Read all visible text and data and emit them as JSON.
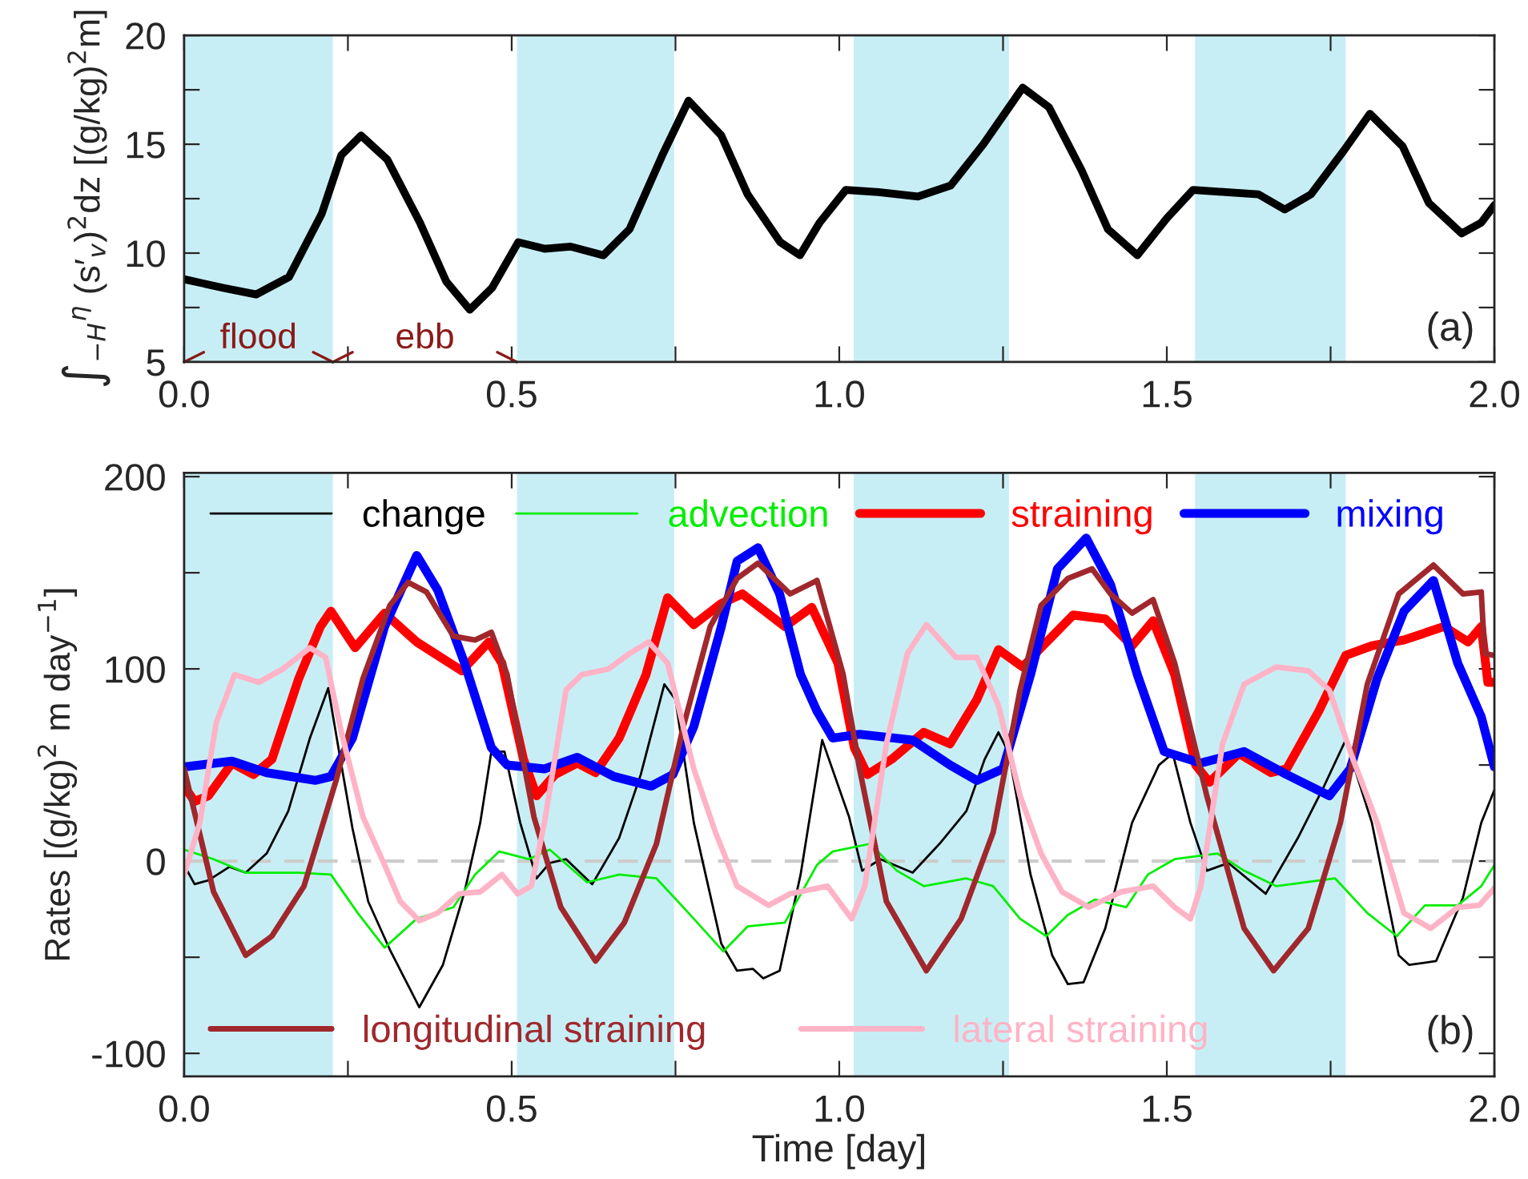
{
  "chart_data": [
    {
      "type": "line",
      "ylabel": "∫$_{−H}$$^{η}$ (s′$_{v}$)$^{2}$dz [(g/kg)$^{2}$m]",
      "xlim": [
        0,
        2
      ],
      "ylim": [
        5,
        20
      ],
      "xticks": [
        {
          "value": 0,
          "label": "0.0"
        },
        {
          "value": 0.25,
          "label": null
        },
        {
          "value": 0.5,
          "label": "0.5"
        },
        {
          "value": 0.75,
          "label": null
        },
        {
          "value": 1,
          "label": "1.0"
        },
        {
          "value": 1.25,
          "label": null
        },
        {
          "value": 1.5,
          "label": "1.5"
        },
        {
          "value": 1.75,
          "label": null
        },
        {
          "value": 2,
          "label": "2.0"
        }
      ],
      "yticks": [
        5,
        {
          "value": 7.5,
          "label": null
        },
        10,
        {
          "value": 12.5,
          "label": null
        },
        15,
        {
          "value": 17.5,
          "label": null
        },
        20
      ],
      "bands": [
        {
          "axis": "x",
          "from": 0,
          "to": 0.227,
          "color": "#c8eef5"
        },
        {
          "axis": "x",
          "from": 0.508,
          "to": 0.748,
          "color": "#c8eef5"
        },
        {
          "axis": "x",
          "from": 1.022,
          "to": 1.259,
          "color": "#c8eef5"
        },
        {
          "axis": "x",
          "from": 1.543,
          "to": 1.773,
          "color": "#c8eef5"
        }
      ],
      "annotations": [
        "(a)",
        "flood",
        "ebb"
      ],
      "grid": false,
      "legend": false,
      "series": [
        {
          "color": "#000000",
          "x": [
            0,
            0.06,
            0.11,
            0.16,
            0.21,
            0.24,
            0.27,
            0.31,
            0.36,
            0.4,
            0.436,
            0.47,
            0.51,
            0.55,
            0.59,
            0.64,
            0.68,
            0.73,
            0.77,
            0.82,
            0.86,
            0.91,
            0.94,
            0.97,
            1.01,
            1.06,
            1.12,
            1.17,
            1.22,
            1.28,
            1.32,
            1.37,
            1.41,
            1.455,
            1.5,
            1.54,
            1.59,
            1.64,
            1.68,
            1.72,
            1.77,
            1.81,
            1.86,
            1.9,
            1.95,
            1.98,
            2.0
          ],
          "values": [
            8.8,
            8.4,
            8.1,
            8.9,
            11.8,
            14.5,
            15.4,
            14.3,
            11.4,
            8.7,
            7.4,
            8.4,
            10.5,
            10.2,
            10.3,
            9.9,
            11.1,
            14.5,
            17.0,
            15.4,
            12.7,
            10.5,
            9.9,
            11.4,
            12.9,
            12.8,
            12.6,
            13.1,
            15.0,
            17.6,
            16.7,
            13.8,
            11.1,
            9.9,
            11.6,
            12.9,
            12.8,
            12.7,
            12.0,
            12.7,
            14.7,
            16.4,
            14.9,
            12.3,
            10.9,
            11.4,
            12.2
          ]
        }
      ]
    },
    {
      "type": "line",
      "xlabel": "Time [day]",
      "ylabel": "Rates [(g/kg)$^{2}$ m day$^{−1}$]",
      "xlim": [
        0,
        2
      ],
      "ylim": [
        -112,
        202
      ],
      "xticks": [
        {
          "value": 0,
          "label": "0.0"
        },
        {
          "value": 0.25,
          "label": null
        },
        {
          "value": 0.5,
          "label": "0.5"
        },
        {
          "value": 0.75,
          "label": null
        },
        {
          "value": 1,
          "label": "1.0"
        },
        {
          "value": 1.25,
          "label": null
        },
        {
          "value": 1.5,
          "label": "1.5"
        },
        {
          "value": 1.75,
          "label": null
        },
        {
          "value": 2,
          "label": "2.0"
        }
      ],
      "yticks": [
        {
          "value": -100,
          "label": "-100"
        },
        {
          "value": -50,
          "label": null
        },
        0,
        {
          "value": 50,
          "label": null
        },
        100,
        {
          "value": 150,
          "label": null
        },
        200
      ],
      "bands": [
        {
          "axis": "x",
          "from": 0,
          "to": 0.227,
          "color": "#c8eef5"
        },
        {
          "axis": "x",
          "from": 0.508,
          "to": 0.748,
          "color": "#c8eef5"
        },
        {
          "axis": "x",
          "from": 1.022,
          "to": 1.259,
          "color": "#c8eef5"
        },
        {
          "axis": "x",
          "from": 1.543,
          "to": 1.773,
          "color": "#c8eef5"
        }
      ],
      "ref_lines": [
        {
          "axis": "y",
          "value": 0,
          "color": "#cccccc",
          "line_style": "dashed"
        }
      ],
      "annotations": [
        "(b)"
      ],
      "grid": false,
      "legend": "top",
      "series": [
        {
          "name": "change",
          "color": "#000000",
          "x": [
            0,
            0.016,
            0.037,
            0.069,
            0.094,
            0.126,
            0.159,
            0.192,
            0.22,
            0.236,
            0.257,
            0.281,
            0.314,
            0.359,
            0.395,
            0.428,
            0.452,
            0.469,
            0.489,
            0.513,
            0.538,
            0.558,
            0.583,
            0.623,
            0.664,
            0.697,
            0.733,
            0.75,
            0.778,
            0.82,
            0.844,
            0.868,
            0.884,
            0.909,
            0.941,
            0.974,
            1.015,
            1.035,
            1.063,
            1.112,
            1.153,
            1.194,
            1.222,
            1.243,
            1.259,
            1.292,
            1.325,
            1.349,
            1.373,
            1.406,
            1.447,
            1.488,
            1.509,
            1.536,
            1.561,
            1.594,
            1.651,
            1.7,
            1.74,
            1.773,
            1.813,
            1.854,
            1.87,
            1.911,
            1.952,
            1.98,
            2.0
          ],
          "values": [
            -2,
            -12,
            -10,
            -3,
            -6,
            4,
            26,
            64,
            90,
            58,
            17,
            -21,
            -46,
            -76,
            -54,
            -16,
            20,
            57,
            57,
            20,
            -9,
            -1,
            1,
            -12,
            12,
            45,
            92,
            84,
            20,
            -43,
            -57,
            -56,
            -61,
            -57,
            -7,
            63,
            23,
            -5,
            1,
            -6,
            9,
            26,
            53,
            67,
            56,
            -7,
            -49,
            -64,
            -63,
            -35,
            20,
            50,
            56,
            20,
            -5,
            -1,
            -17,
            12,
            39,
            63,
            20,
            -49,
            -54,
            -52,
            -19,
            20,
            37
          ]
        },
        {
          "name": "advection",
          "color": "#00ee00",
          "x": [
            0,
            0.045,
            0.094,
            0.175,
            0.224,
            0.265,
            0.306,
            0.355,
            0.411,
            0.444,
            0.481,
            0.526,
            0.558,
            0.615,
            0.664,
            0.721,
            0.77,
            0.823,
            0.86,
            0.917,
            0.966,
            0.99,
            1.047,
            1.088,
            1.129,
            1.194,
            1.235,
            1.276,
            1.316,
            1.349,
            1.39,
            1.438,
            1.471,
            1.512,
            1.577,
            1.618,
            1.667,
            1.757,
            1.806,
            1.851,
            1.894,
            1.944,
            1.98,
            2.0
          ],
          "values": [
            6,
            1,
            -6,
            -6,
            -7,
            -27,
            -45,
            -30,
            -24,
            -7,
            5,
            1,
            6,
            -11,
            -7,
            -9,
            -27,
            -47,
            -34,
            -32,
            -2,
            5,
            9,
            -5,
            -13,
            -9,
            -13,
            -30,
            -39,
            -28,
            -20,
            -24,
            -7,
            1,
            4,
            -5,
            -13,
            -9,
            -27,
            -39,
            -23,
            -23,
            -13,
            -2
          ]
        },
        {
          "name": "straining",
          "color": "#ff0000",
          "x": [
            0,
            0.016,
            0.037,
            0.073,
            0.106,
            0.134,
            0.175,
            0.208,
            0.224,
            0.261,
            0.306,
            0.355,
            0.387,
            0.424,
            0.465,
            0.485,
            0.518,
            0.538,
            0.566,
            0.6,
            0.628,
            0.664,
            0.705,
            0.738,
            0.778,
            0.82,
            0.852,
            0.917,
            0.958,
            0.998,
            1.023,
            1.043,
            1.08,
            1.129,
            1.169,
            1.21,
            1.243,
            1.28,
            1.308,
            1.357,
            1.406,
            1.447,
            1.479,
            1.512,
            1.544,
            1.565,
            1.61,
            1.659,
            1.683,
            1.732,
            1.773,
            1.813,
            1.862,
            1.923,
            1.96,
            1.98,
            1.99,
            2.0
          ],
          "values": [
            39,
            31,
            34,
            51,
            45,
            53,
            95,
            122,
            130,
            111,
            129,
            114,
            107,
            99,
            114,
            103,
            53,
            34,
            45,
            51,
            46,
            64,
            97,
            137,
            123,
            134,
            139,
            122,
            132,
            103,
            59,
            45,
            53,
            67,
            61,
            84,
            110,
            101,
            111,
            128,
            126,
            112,
            125,
            97,
            50,
            41,
            56,
            46,
            48,
            78,
            107,
            112,
            115,
            122,
            114,
            122,
            93,
            93
          ]
        },
        {
          "name": "mixing",
          "color": "#0000ff",
          "x": [
            0,
            0.073,
            0.126,
            0.2,
            0.224,
            0.257,
            0.306,
            0.355,
            0.387,
            0.428,
            0.469,
            0.493,
            0.55,
            0.6,
            0.656,
            0.713,
            0.746,
            0.778,
            0.82,
            0.844,
            0.876,
            0.909,
            0.941,
            0.966,
            0.99,
            1.031,
            1.112,
            1.169,
            1.21,
            1.25,
            1.292,
            1.333,
            1.377,
            1.414,
            1.455,
            1.496,
            1.552,
            1.618,
            1.683,
            1.748,
            1.78,
            1.821,
            1.862,
            1.907,
            1.944,
            1.98,
            2.0
          ],
          "values": [
            49,
            52,
            46,
            42,
            44,
            64,
            122,
            159,
            141,
            103,
            59,
            50,
            48,
            54,
            44,
            39,
            45,
            70,
            122,
            156,
            163,
            139,
            97,
            78,
            64,
            66,
            63,
            50,
            42,
            48,
            97,
            152,
            168,
            144,
            97,
            57,
            51,
            57,
            45,
            34,
            48,
            95,
            130,
            146,
            103,
            75,
            49
          ]
        },
        {
          "name": "longitudinal straining",
          "color": "#a0282d",
          "x": [
            0,
            0.045,
            0.094,
            0.134,
            0.183,
            0.232,
            0.273,
            0.314,
            0.342,
            0.37,
            0.411,
            0.444,
            0.469,
            0.493,
            0.534,
            0.575,
            0.628,
            0.672,
            0.721,
            0.762,
            0.803,
            0.844,
            0.876,
            0.925,
            0.966,
            1.006,
            1.031,
            1.072,
            1.133,
            1.186,
            1.235,
            1.276,
            1.308,
            1.349,
            1.386,
            1.414,
            1.447,
            1.479,
            1.512,
            1.561,
            1.618,
            1.663,
            1.716,
            1.765,
            1.806,
            1.854,
            1.907,
            1.952,
            1.98,
            1.985,
            2.0
          ],
          "values": [
            48,
            -16,
            -49,
            -39,
            -13,
            42,
            95,
            133,
            145,
            140,
            117,
            115,
            119,
            97,
            23,
            -24,
            -52,
            -32,
            9,
            70,
            122,
            147,
            155,
            139,
            146,
            97,
            48,
            -21,
            -57,
            -30,
            15,
            89,
            133,
            147,
            152,
            139,
            129,
            136,
            103,
            34,
            -35,
            -57,
            -35,
            20,
            92,
            139,
            154,
            139,
            140,
            108,
            107
          ]
        },
        {
          "name": "lateral straining",
          "color": "#ffb3c6",
          "x": [
            0,
            0.024,
            0.049,
            0.077,
            0.114,
            0.151,
            0.192,
            0.216,
            0.24,
            0.273,
            0.306,
            0.33,
            0.359,
            0.387,
            0.42,
            0.452,
            0.485,
            0.509,
            0.53,
            0.55,
            0.583,
            0.607,
            0.648,
            0.68,
            0.709,
            0.738,
            0.778,
            0.811,
            0.844,
            0.892,
            0.925,
            0.982,
            1.019,
            1.039,
            1.072,
            1.104,
            1.133,
            1.178,
            1.21,
            1.243,
            1.276,
            1.308,
            1.34,
            1.381,
            1.43,
            1.479,
            1.512,
            1.536,
            1.552,
            1.585,
            1.618,
            1.667,
            1.716,
            1.748,
            1.781,
            1.821,
            1.862,
            1.903,
            1.944,
            1.977,
            2.0
          ],
          "values": [
            -7,
            20,
            72,
            97,
            93,
            100,
            111,
            106,
            67,
            23,
            -2,
            -21,
            -31,
            -27,
            -17,
            -16,
            -7,
            -17,
            -13,
            20,
            89,
            97,
            100,
            108,
            114,
            103,
            48,
            15,
            -13,
            -23,
            -17,
            -13,
            -30,
            -13,
            61,
            108,
            123,
            106,
            106,
            81,
            34,
            4,
            -16,
            -24,
            -16,
            -13,
            -24,
            -30,
            -13,
            61,
            92,
            101,
            99,
            89,
            56,
            20,
            -27,
            -35,
            -24,
            -23,
            -14
          ]
        }
      ]
    }
  ]
}
